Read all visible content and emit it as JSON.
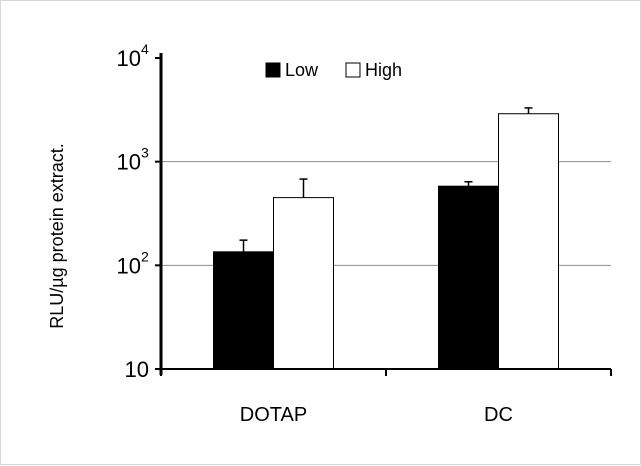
{
  "chart_data": {
    "type": "bar",
    "title": "",
    "xlabel": "",
    "ylabel": "RLU/µg protein extract.",
    "y_scale": "log",
    "ylim": [
      10,
      10000
    ],
    "y_ticks": [
      {
        "value": 10,
        "base": "10",
        "exp": ""
      },
      {
        "value": 100,
        "base": "10",
        "exp": "2"
      },
      {
        "value": 1000,
        "base": "10",
        "exp": "3"
      },
      {
        "value": 10000,
        "base": "10",
        "exp": "4"
      }
    ],
    "gridlines_at": [
      100,
      1000
    ],
    "legend_position": "top-center",
    "categories": [
      "DOTAP",
      "DC"
    ],
    "series": [
      {
        "name": "Low",
        "color": "#000000",
        "values": [
          135,
          580
        ],
        "error_plus": [
          40,
          60
        ]
      },
      {
        "name": "High",
        "color": "#ffffff",
        "values": [
          450,
          2900
        ],
        "error_plus": [
          230,
          400
        ]
      }
    ]
  }
}
